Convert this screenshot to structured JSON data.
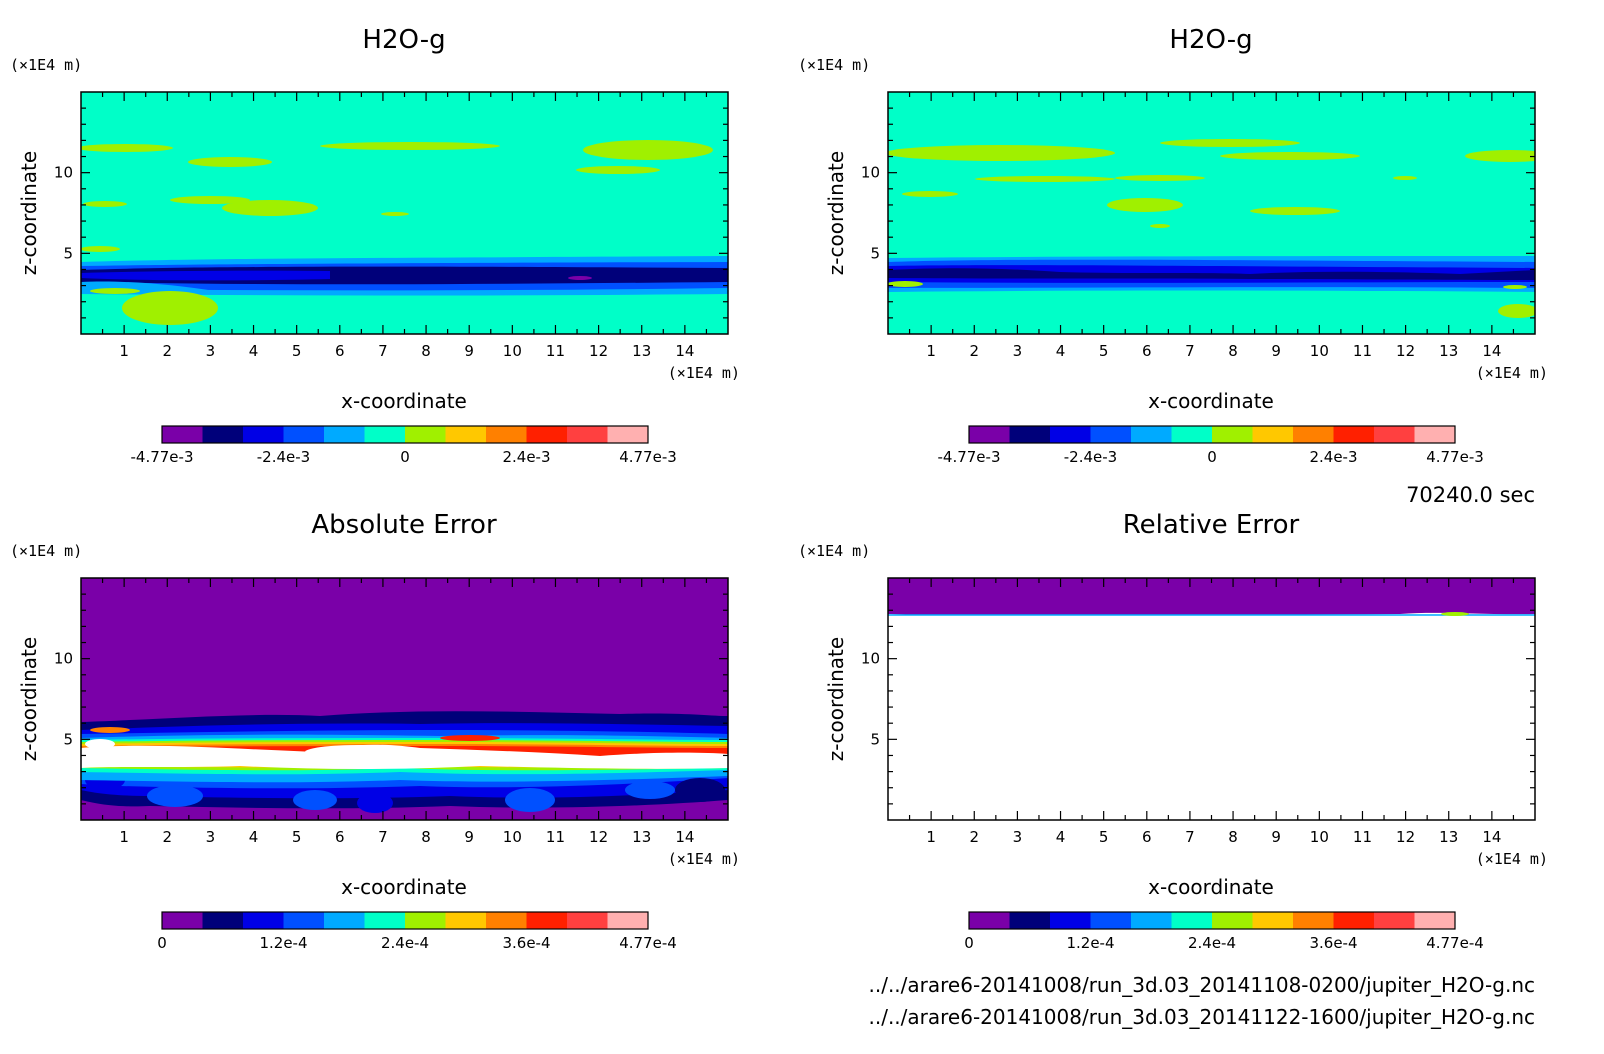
{
  "colors": {
    "levels": [
      "#7a00a8",
      "#00007a",
      "#0000e6",
      "#0050ff",
      "#00aaff",
      "#00ffc8",
      "#a0f000",
      "#ffc800",
      "#ff8000",
      "#ff2000",
      "#ff4040",
      "#ffb0b0"
    ],
    "white": "#ffffff"
  },
  "time_label": "70240.0 sec",
  "files": [
    "../../arare6-20141008/run_3d.03_20141108-0200/jupiter_H2O-g.nc",
    "../../arare6-20141008/run_3d.03_20141122-1600/jupiter_H2O-g.nc"
  ],
  "chart_data": [
    {
      "type": "heatmap",
      "title": "H2O-g",
      "xlabel": "x-coordinate",
      "ylabel": "z-coordinate",
      "x_unit": "(×1E4 m)",
      "z_unit": "(×1E4 m)",
      "xlim": [
        0,
        15
      ],
      "zlim": [
        0,
        15
      ],
      "x_ticks": [
        "1",
        "2",
        "3",
        "4",
        "5",
        "6",
        "7",
        "8",
        "9",
        "10",
        "11",
        "12",
        "13",
        "14"
      ],
      "z_ticks": [
        "5",
        "10"
      ],
      "colorbar_labels": [
        "-4.77e-3",
        "-2.4e-3",
        "0",
        "2.4e-3",
        "4.77e-3"
      ],
      "colorbar_range": [
        -0.00477,
        0.00477
      ]
    },
    {
      "type": "heatmap",
      "title": "H2O-g",
      "xlabel": "x-coordinate",
      "ylabel": "z-coordinate",
      "x_unit": "(×1E4 m)",
      "z_unit": "(×1E4 m)",
      "xlim": [
        0,
        15
      ],
      "zlim": [
        0,
        15
      ],
      "x_ticks": [
        "1",
        "2",
        "3",
        "4",
        "5",
        "6",
        "7",
        "8",
        "9",
        "10",
        "11",
        "12",
        "13",
        "14"
      ],
      "z_ticks": [
        "5",
        "10"
      ],
      "colorbar_labels": [
        "-4.77e-3",
        "-2.4e-3",
        "0",
        "2.4e-3",
        "4.77e-3"
      ],
      "colorbar_range": [
        -0.00477,
        0.00477
      ]
    },
    {
      "type": "heatmap",
      "title": "Absolute Error",
      "xlabel": "x-coordinate",
      "ylabel": "z-coordinate",
      "x_unit": "(×1E4 m)",
      "z_unit": "(×1E4 m)",
      "xlim": [
        0,
        15
      ],
      "zlim": [
        0,
        15
      ],
      "x_ticks": [
        "1",
        "2",
        "3",
        "4",
        "5",
        "6",
        "7",
        "8",
        "9",
        "10",
        "11",
        "12",
        "13",
        "14"
      ],
      "z_ticks": [
        "5",
        "10"
      ],
      "colorbar_labels": [
        "0",
        "1.2e-4",
        "2.4e-4",
        "3.6e-4",
        "4.77e-4"
      ],
      "colorbar_range": [
        0,
        0.000477
      ]
    },
    {
      "type": "heatmap",
      "title": "Relative Error",
      "xlabel": "x-coordinate",
      "ylabel": "z-coordinate",
      "x_unit": "(×1E4 m)",
      "z_unit": "(×1E4 m)",
      "xlim": [
        0,
        15
      ],
      "zlim": [
        0,
        15
      ],
      "x_ticks": [
        "1",
        "2",
        "3",
        "4",
        "5",
        "6",
        "7",
        "8",
        "9",
        "10",
        "11",
        "12",
        "13",
        "14"
      ],
      "z_ticks": [
        "5",
        "10"
      ],
      "colorbar_labels": [
        "0",
        "1.2e-4",
        "2.4e-4",
        "3.6e-4",
        "4.77e-4"
      ],
      "colorbar_range": [
        0,
        0.000477
      ]
    }
  ]
}
